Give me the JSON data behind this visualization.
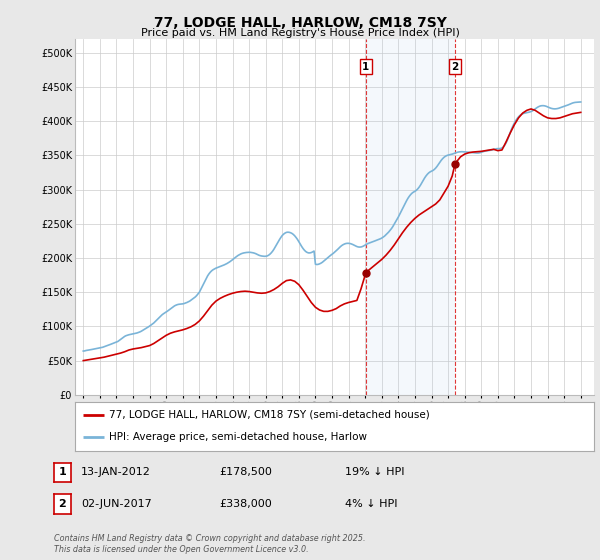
{
  "title": "77, LODGE HALL, HARLOW, CM18 7SY",
  "subtitle": "Price paid vs. HM Land Registry's House Price Index (HPI)",
  "ylim": [
    0,
    520000
  ],
  "xlim_start": 1994.5,
  "xlim_end": 2025.8,
  "background_color": "#e8e8e8",
  "plot_bg_color": "#ffffff",
  "grid_color": "#cccccc",
  "hpi_color": "#7ab4d8",
  "price_color": "#cc0000",
  "purchase1_date": 2012.04,
  "purchase1_price": 178500,
  "purchase1_label": "1",
  "purchase2_date": 2017.42,
  "purchase2_price": 338000,
  "purchase2_label": "2",
  "legend_property": "77, LODGE HALL, HARLOW, CM18 7SY (semi-detached house)",
  "legend_hpi": "HPI: Average price, semi-detached house, Harlow",
  "annotation1_date": "13-JAN-2012",
  "annotation1_price": "£178,500",
  "annotation1_hpi": "19% ↓ HPI",
  "annotation2_date": "02-JUN-2017",
  "annotation2_price": "£338,000",
  "annotation2_hpi": "4% ↓ HPI",
  "footer": "Contains HM Land Registry data © Crown copyright and database right 2025.\nThis data is licensed under the Open Government Licence v3.0.",
  "hpi_data_x": [
    1995.0,
    1995.083,
    1995.167,
    1995.25,
    1995.333,
    1995.417,
    1995.5,
    1995.583,
    1995.667,
    1995.75,
    1995.833,
    1995.917,
    1996.0,
    1996.083,
    1996.167,
    1996.25,
    1996.333,
    1996.417,
    1996.5,
    1996.583,
    1996.667,
    1996.75,
    1996.833,
    1996.917,
    1997.0,
    1997.083,
    1997.167,
    1997.25,
    1997.333,
    1997.417,
    1997.5,
    1997.583,
    1997.667,
    1997.75,
    1997.833,
    1997.917,
    1998.0,
    1998.083,
    1998.167,
    1998.25,
    1998.333,
    1998.417,
    1998.5,
    1998.583,
    1998.667,
    1998.75,
    1998.833,
    1998.917,
    1999.0,
    1999.083,
    1999.167,
    1999.25,
    1999.333,
    1999.417,
    1999.5,
    1999.583,
    1999.667,
    1999.75,
    1999.833,
    1999.917,
    2000.0,
    2000.083,
    2000.167,
    2000.25,
    2000.333,
    2000.417,
    2000.5,
    2000.583,
    2000.667,
    2000.75,
    2000.833,
    2000.917,
    2001.0,
    2001.083,
    2001.167,
    2001.25,
    2001.333,
    2001.417,
    2001.5,
    2001.583,
    2001.667,
    2001.75,
    2001.833,
    2001.917,
    2002.0,
    2002.083,
    2002.167,
    2002.25,
    2002.333,
    2002.417,
    2002.5,
    2002.583,
    2002.667,
    2002.75,
    2002.833,
    2002.917,
    2003.0,
    2003.083,
    2003.167,
    2003.25,
    2003.333,
    2003.417,
    2003.5,
    2003.583,
    2003.667,
    2003.75,
    2003.833,
    2003.917,
    2004.0,
    2004.083,
    2004.167,
    2004.25,
    2004.333,
    2004.417,
    2004.5,
    2004.583,
    2004.667,
    2004.75,
    2004.833,
    2004.917,
    2005.0,
    2005.083,
    2005.167,
    2005.25,
    2005.333,
    2005.417,
    2005.5,
    2005.583,
    2005.667,
    2005.75,
    2005.833,
    2005.917,
    2006.0,
    2006.083,
    2006.167,
    2006.25,
    2006.333,
    2006.417,
    2006.5,
    2006.583,
    2006.667,
    2006.75,
    2006.833,
    2006.917,
    2007.0,
    2007.083,
    2007.167,
    2007.25,
    2007.333,
    2007.417,
    2007.5,
    2007.583,
    2007.667,
    2007.75,
    2007.833,
    2007.917,
    2008.0,
    2008.083,
    2008.167,
    2008.25,
    2008.333,
    2008.417,
    2008.5,
    2008.583,
    2008.667,
    2008.75,
    2008.833,
    2008.917,
    2009.0,
    2009.083,
    2009.167,
    2009.25,
    2009.333,
    2009.417,
    2009.5,
    2009.583,
    2009.667,
    2009.75,
    2009.833,
    2009.917,
    2010.0,
    2010.083,
    2010.167,
    2010.25,
    2010.333,
    2010.417,
    2010.5,
    2010.583,
    2010.667,
    2010.75,
    2010.833,
    2010.917,
    2011.0,
    2011.083,
    2011.167,
    2011.25,
    2011.333,
    2011.417,
    2011.5,
    2011.583,
    2011.667,
    2011.75,
    2011.833,
    2011.917,
    2012.0,
    2012.083,
    2012.167,
    2012.25,
    2012.333,
    2012.417,
    2012.5,
    2012.583,
    2012.667,
    2012.75,
    2012.833,
    2012.917,
    2013.0,
    2013.083,
    2013.167,
    2013.25,
    2013.333,
    2013.417,
    2013.5,
    2013.583,
    2013.667,
    2013.75,
    2013.833,
    2013.917,
    2014.0,
    2014.083,
    2014.167,
    2014.25,
    2014.333,
    2014.417,
    2014.5,
    2014.583,
    2014.667,
    2014.75,
    2014.833,
    2014.917,
    2015.0,
    2015.083,
    2015.167,
    2015.25,
    2015.333,
    2015.417,
    2015.5,
    2015.583,
    2015.667,
    2015.75,
    2015.833,
    2015.917,
    2016.0,
    2016.083,
    2016.167,
    2016.25,
    2016.333,
    2016.417,
    2016.5,
    2016.583,
    2016.667,
    2016.75,
    2016.833,
    2016.917,
    2017.0,
    2017.083,
    2017.167,
    2017.25,
    2017.333,
    2017.417,
    2017.5,
    2017.583,
    2017.667,
    2017.75,
    2017.833,
    2017.917,
    2018.0,
    2018.083,
    2018.167,
    2018.25,
    2018.333,
    2018.417,
    2018.5,
    2018.583,
    2018.667,
    2018.75,
    2018.833,
    2018.917,
    2019.0,
    2019.083,
    2019.167,
    2019.25,
    2019.333,
    2019.417,
    2019.5,
    2019.583,
    2019.667,
    2019.75,
    2019.833,
    2019.917,
    2020.0,
    2020.083,
    2020.167,
    2020.25,
    2020.333,
    2020.417,
    2020.5,
    2020.583,
    2020.667,
    2020.75,
    2020.833,
    2020.917,
    2021.0,
    2021.083,
    2021.167,
    2021.25,
    2021.333,
    2021.417,
    2021.5,
    2021.583,
    2021.667,
    2021.75,
    2021.833,
    2021.917,
    2022.0,
    2022.083,
    2022.167,
    2022.25,
    2022.333,
    2022.417,
    2022.5,
    2022.583,
    2022.667,
    2022.75,
    2022.833,
    2022.917,
    2023.0,
    2023.083,
    2023.167,
    2023.25,
    2023.333,
    2023.417,
    2023.5,
    2023.583,
    2023.667,
    2023.75,
    2023.833,
    2023.917,
    2024.0,
    2024.083,
    2024.167,
    2024.25,
    2024.333,
    2024.417,
    2024.5,
    2024.583,
    2024.667,
    2024.75,
    2024.833,
    2024.917,
    2025.0
  ],
  "hpi_data_y": [
    64000,
    64200,
    64800,
    65200,
    65500,
    65800,
    66200,
    66600,
    67000,
    67400,
    67800,
    68200,
    68600,
    69000,
    69500,
    70200,
    71000,
    71800,
    72500,
    73200,
    74000,
    74800,
    75600,
    76400,
    77200,
    78000,
    79500,
    81000,
    82500,
    84000,
    85500,
    86500,
    87200,
    87800,
    88300,
    88700,
    89100,
    89500,
    90000,
    90500,
    91200,
    92000,
    93000,
    94200,
    95500,
    96800,
    98000,
    99200,
    100500,
    102000,
    103500,
    105000,
    107000,
    109000,
    111000,
    113000,
    115000,
    117000,
    118500,
    119800,
    121000,
    122500,
    124000,
    125500,
    127000,
    128500,
    130000,
    131000,
    131800,
    132300,
    132600,
    132800,
    133000,
    133500,
    134200,
    135000,
    136000,
    137000,
    138500,
    140000,
    141500,
    143000,
    145000,
    147500,
    150000,
    154000,
    158000,
    162000,
    166000,
    170000,
    174000,
    177000,
    179500,
    181500,
    183000,
    184200,
    185200,
    186000,
    186800,
    187600,
    188400,
    189200,
    190000,
    191000,
    192000,
    193200,
    194500,
    196000,
    197500,
    199200,
    200800,
    202400,
    203800,
    205000,
    206000,
    206800,
    207400,
    207800,
    208100,
    208300,
    208400,
    208300,
    208000,
    207600,
    207000,
    206200,
    205200,
    204200,
    203500,
    203000,
    202700,
    202500,
    202600,
    203000,
    204000,
    205500,
    207500,
    210000,
    213000,
    216500,
    220000,
    223500,
    227000,
    230200,
    233000,
    235000,
    236500,
    237500,
    237800,
    237600,
    237000,
    236000,
    234500,
    232500,
    230000,
    227200,
    224000,
    220500,
    217000,
    214000,
    211500,
    209500,
    208200,
    207500,
    207500,
    208000,
    209000,
    210200,
    191000,
    190500,
    190800,
    191500,
    192500,
    193800,
    195500,
    197200,
    199000,
    200800,
    202500,
    204000,
    205500,
    207000,
    208800,
    210500,
    212500,
    214500,
    216500,
    218200,
    219500,
    220500,
    221200,
    221500,
    221500,
    221200,
    220600,
    219800,
    218800,
    217800,
    216800,
    216200,
    216000,
    216200,
    216800,
    217800,
    219000,
    220200,
    221200,
    222000,
    222800,
    223500,
    224200,
    225000,
    225800,
    226600,
    227400,
    228200,
    229200,
    230500,
    232000,
    234000,
    236000,
    238000,
    240500,
    243000,
    246000,
    249500,
    253000,
    256500,
    260000,
    264000,
    268000,
    272000,
    276000,
    280000,
    284000,
    287500,
    290500,
    293000,
    295000,
    296500,
    297500,
    299000,
    301000,
    303500,
    306500,
    310000,
    313500,
    317000,
    320000,
    322500,
    324500,
    326000,
    327000,
    328000,
    329500,
    331500,
    334000,
    337000,
    340000,
    342800,
    345200,
    347200,
    348700,
    349800,
    350500,
    351000,
    351500,
    352000,
    352700,
    353500,
    354200,
    354800,
    355200,
    355400,
    355500,
    355400,
    355200,
    355000,
    354800,
    354600,
    354400,
    354200,
    354000,
    353800,
    353600,
    353500,
    353600,
    354000,
    354600,
    355300,
    356000,
    356500,
    356800,
    357000,
    357300,
    357700,
    358200,
    358800,
    359300,
    359800,
    360000,
    360000,
    360200,
    361000,
    362500,
    365000,
    368500,
    373000,
    378500,
    384000,
    389000,
    393500,
    397500,
    401000,
    404000,
    406500,
    408500,
    410000,
    411000,
    411700,
    412200,
    412600,
    413000,
    413500,
    414200,
    415200,
    416500,
    418000,
    419500,
    420800,
    421800,
    422500,
    422800,
    422800,
    422500,
    421900,
    421000,
    420100,
    419300,
    418700,
    418300,
    418100,
    418200,
    418500,
    419000,
    419700,
    420400,
    421100,
    421800,
    422500,
    423200,
    424000,
    424900,
    425800,
    426600,
    427200,
    427600,
    427800,
    428000,
    428100,
    428200
  ],
  "price_data_x": [
    1995.0,
    1995.25,
    1995.5,
    1995.75,
    1996.0,
    1996.25,
    1996.5,
    1996.75,
    1997.0,
    1997.25,
    1997.5,
    1997.75,
    1998.0,
    1998.25,
    1998.5,
    1998.75,
    1999.0,
    1999.25,
    1999.5,
    1999.75,
    2000.0,
    2000.25,
    2000.5,
    2000.75,
    2001.0,
    2001.25,
    2001.5,
    2001.75,
    2002.0,
    2002.25,
    2002.5,
    2002.75,
    2003.0,
    2003.25,
    2003.5,
    2003.75,
    2004.0,
    2004.25,
    2004.5,
    2004.75,
    2005.0,
    2005.25,
    2005.5,
    2005.75,
    2006.0,
    2006.25,
    2006.5,
    2006.75,
    2007.0,
    2007.25,
    2007.5,
    2007.75,
    2008.0,
    2008.25,
    2008.5,
    2008.75,
    2009.0,
    2009.25,
    2009.5,
    2009.75,
    2010.0,
    2010.25,
    2010.5,
    2010.75,
    2011.0,
    2011.25,
    2011.5,
    2011.75,
    2012.04,
    2012.25,
    2012.5,
    2012.75,
    2013.0,
    2013.25,
    2013.5,
    2013.75,
    2014.0,
    2014.25,
    2014.5,
    2014.75,
    2015.0,
    2015.25,
    2015.5,
    2015.75,
    2016.0,
    2016.25,
    2016.5,
    2016.75,
    2017.0,
    2017.25,
    2017.42,
    2017.75,
    2018.0,
    2018.25,
    2018.5,
    2018.75,
    2019.0,
    2019.25,
    2019.5,
    2019.75,
    2020.0,
    2020.25,
    2020.5,
    2020.75,
    2021.0,
    2021.25,
    2021.5,
    2021.75,
    2022.0,
    2022.25,
    2022.5,
    2022.75,
    2023.0,
    2023.25,
    2023.5,
    2023.75,
    2024.0,
    2024.25,
    2024.5,
    2024.75,
    2025.0
  ],
  "price_data_y": [
    50000,
    51000,
    52000,
    53000,
    54000,
    55000,
    56500,
    58000,
    59500,
    61000,
    63000,
    65500,
    67000,
    68000,
    69000,
    70500,
    72000,
    75000,
    79000,
    83000,
    87000,
    90000,
    92000,
    93500,
    95000,
    97000,
    99500,
    103000,
    108000,
    115000,
    123000,
    131000,
    137000,
    141000,
    144000,
    146500,
    148500,
    150000,
    151000,
    151500,
    151000,
    150000,
    149000,
    148500,
    149000,
    151000,
    154000,
    158000,
    163000,
    167000,
    168000,
    166000,
    161000,
    153000,
    144000,
    135000,
    128000,
    124000,
    122000,
    122000,
    123500,
    126000,
    130000,
    133000,
    135000,
    136500,
    138000,
    155000,
    178500,
    183000,
    188000,
    193000,
    198000,
    204000,
    211000,
    219000,
    228000,
    237000,
    245000,
    252000,
    258000,
    263000,
    267000,
    271000,
    275000,
    279000,
    285000,
    295000,
    305000,
    320000,
    338000,
    348000,
    352000,
    354000,
    355000,
    355500,
    356000,
    357000,
    358000,
    359000,
    357000,
    358000,
    370000,
    383000,
    395000,
    405000,
    412000,
    416000,
    418000,
    416000,
    412000,
    408000,
    405000,
    404000,
    404000,
    405000,
    407000,
    409000,
    411000,
    412000,
    413000
  ],
  "shaded_region_start": 2012.04,
  "shaded_region_end": 2017.42,
  "xticks": [
    1995,
    1996,
    1997,
    1998,
    1999,
    2000,
    2001,
    2002,
    2003,
    2004,
    2005,
    2006,
    2007,
    2008,
    2009,
    2010,
    2011,
    2012,
    2013,
    2014,
    2015,
    2016,
    2017,
    2018,
    2019,
    2020,
    2021,
    2022,
    2023,
    2024,
    2025
  ]
}
